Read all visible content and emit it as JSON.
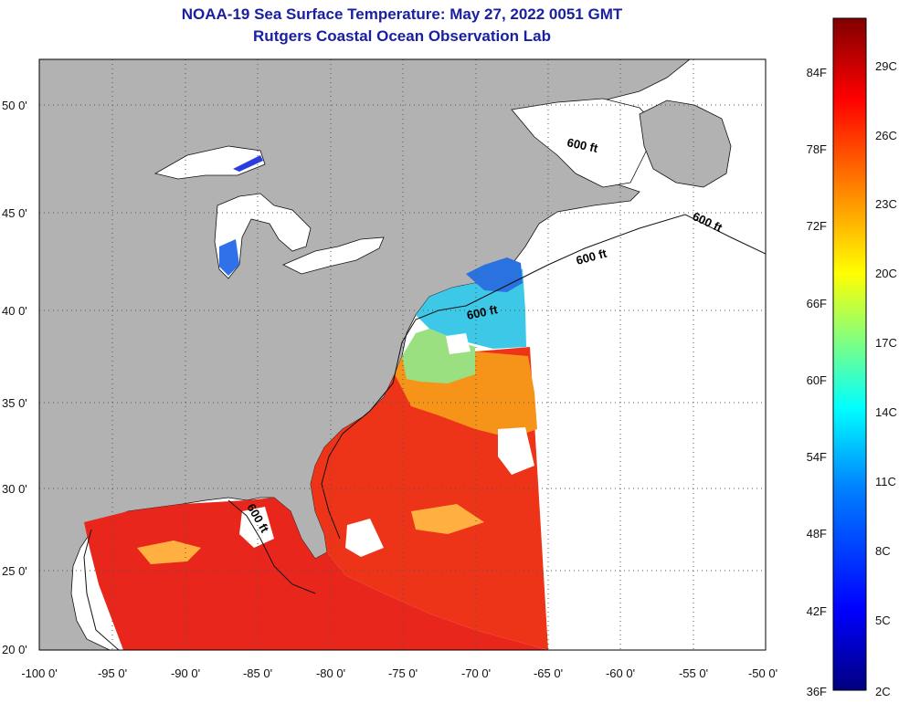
{
  "title": {
    "line1": "NOAA-19 Sea Surface Temperature:  May 27, 2022 0051 GMT",
    "line2": "Rutgers Coastal Ocean Observation Lab"
  },
  "map": {
    "lon_ticks": [
      "-100 0'",
      "-95 0'",
      "-90 0'",
      "-85 0'",
      "-80 0'",
      "-75 0'",
      "-70 0'",
      "-65 0'",
      "-60 0'",
      "-55 0'",
      "-50 0'"
    ],
    "lat_ticks": [
      "50 0'",
      "45 0'",
      "40 0'",
      "35 0'",
      "30 0'",
      "25 0'",
      "20 0'"
    ],
    "contour_label": "600 ft",
    "land_color": "#b2b2b2",
    "no_data_color": "#ffffff"
  },
  "colorbar": {
    "fahrenheit_labels": [
      "84F",
      "78F",
      "72F",
      "66F",
      "60F",
      "54F",
      "48F",
      "42F",
      "36F"
    ],
    "celsius_labels": [
      "29C",
      "26C",
      "23C",
      "20C",
      "17C",
      "14C",
      "11C",
      "8C",
      "5C",
      "2C"
    ],
    "colors": [
      "#00007f",
      "#0000ff",
      "#0080ff",
      "#00ffff",
      "#80ff80",
      "#ffff00",
      "#ff8000",
      "#ff0000",
      "#800000"
    ]
  }
}
